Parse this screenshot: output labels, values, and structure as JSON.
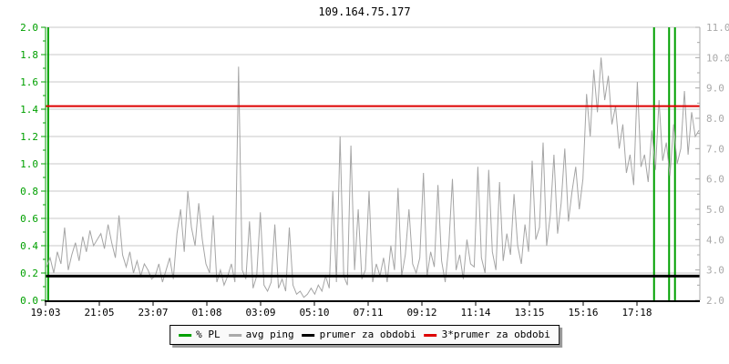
{
  "header": {
    "title": "109.164.75.177"
  },
  "chart_data": {
    "type": "line",
    "title": "109.164.75.177",
    "x_axis": {
      "tick_labels": [
        "19:03",
        "21:05",
        "23:07",
        "01:08",
        "03:09",
        "05:10",
        "07:11",
        "09:12",
        "11:14",
        "13:15",
        "15:16",
        "17:18"
      ],
      "color": "#000000"
    },
    "left_axis": {
      "series": "% PL",
      "range": [
        0.0,
        2.0
      ],
      "tick_step": 0.2,
      "minor_step": 0.1,
      "tick_labels": [
        "2.0",
        "1.8",
        "1.6",
        "1.4",
        "1.2",
        "1.0",
        "0.8",
        "0.6",
        "0.4",
        "0.2",
        "0.0"
      ],
      "color": "#00a000"
    },
    "right_axis": {
      "series": "avg ping (ms)",
      "range": [
        2.0,
        11.0
      ],
      "tick_step": 1.0,
      "minor_step": 0.5,
      "tick_labels": [
        "11.0",
        "10.0",
        "9.0",
        "8.0",
        "7.0",
        "6.0",
        "5.0",
        "4.0",
        "3.0",
        "2.0"
      ],
      "color": "#a8a8a8"
    },
    "grid": {
      "horizontal": true,
      "vertical": false,
      "color": "#c9c9c9"
    },
    "series": [
      {
        "name": "% PL",
        "type": "vline-spikes",
        "axis": "left",
        "color": "#00a000",
        "value": 2.0,
        "events_x_frac": [
          0.004,
          0.93,
          0.953,
          0.962
        ]
      },
      {
        "name": "avg ping",
        "type": "line",
        "axis": "right",
        "color": "#a5a5a5",
        "values_ms": [
          3.1,
          3.4,
          2.9,
          3.6,
          3.2,
          4.4,
          3.0,
          3.5,
          3.9,
          3.3,
          4.1,
          3.6,
          4.3,
          3.8,
          4.0,
          4.2,
          3.7,
          4.5,
          3.9,
          3.4,
          4.8,
          3.5,
          3.1,
          3.6,
          2.9,
          3.3,
          2.8,
          3.2,
          3.0,
          2.7,
          2.8,
          3.2,
          2.6,
          3.0,
          3.4,
          2.7,
          4.2,
          5.0,
          3.6,
          5.6,
          4.4,
          3.8,
          5.2,
          4.0,
          3.2,
          2.9,
          4.8,
          2.6,
          3.0,
          2.5,
          2.8,
          3.2,
          2.6,
          9.7,
          3.0,
          2.7,
          4.6,
          2.4,
          2.8,
          4.9,
          2.5,
          2.3,
          2.6,
          4.5,
          2.4,
          2.7,
          2.3,
          4.4,
          2.5,
          2.2,
          2.3,
          2.1,
          2.2,
          2.4,
          2.2,
          2.5,
          2.3,
          2.8,
          2.4,
          5.6,
          2.6,
          7.4,
          2.8,
          2.5,
          7.1,
          3.0,
          5.0,
          2.7,
          3.0,
          5.6,
          2.6,
          3.2,
          2.8,
          3.4,
          2.6,
          3.8,
          3.0,
          5.7,
          2.8,
          3.5,
          5.0,
          3.2,
          2.9,
          3.4,
          6.2,
          2.8,
          3.6,
          3.1,
          5.8,
          3.3,
          2.6,
          3.8,
          6.0,
          3.0,
          3.5,
          2.7,
          4.0,
          3.2,
          3.1,
          6.4,
          3.4,
          2.9,
          6.3,
          3.6,
          3.0,
          5.9,
          3.3,
          4.2,
          3.5,
          5.5,
          3.8,
          3.2,
          4.5,
          3.6,
          6.6,
          4.0,
          4.4,
          7.2,
          3.8,
          4.8,
          6.8,
          4.2,
          5.2,
          7.0,
          4.6,
          5.6,
          6.4,
          5.0,
          6.0,
          8.8,
          7.4,
          9.6,
          8.2,
          10.0,
          8.6,
          9.4,
          7.8,
          8.4,
          7.0,
          7.8,
          6.2,
          6.8,
          5.8,
          9.2,
          6.4,
          6.8,
          5.9,
          7.6,
          6.3,
          8.6,
          6.6,
          7.2,
          6.1,
          7.8,
          6.5,
          7.0,
          8.9,
          6.8,
          8.2,
          7.4,
          7.6
        ]
      },
      {
        "name": "prumer za obdobi",
        "type": "hline",
        "axis": "right",
        "color": "#000000",
        "value": 2.8
      },
      {
        "name": "3*prumer za obdobi",
        "type": "hline",
        "axis": "right",
        "color": "#dd0000",
        "value": 8.4
      }
    ],
    "legend": {
      "position": "bottom",
      "entries": [
        {
          "label": "% PL",
          "color": "#00a000"
        },
        {
          "label": "avg ping",
          "color": "#aaaaaa"
        },
        {
          "label": "prumer za obdobi",
          "color": "#000000"
        },
        {
          "label": "3*prumer za obdobi",
          "color": "#dd0000"
        }
      ]
    }
  }
}
